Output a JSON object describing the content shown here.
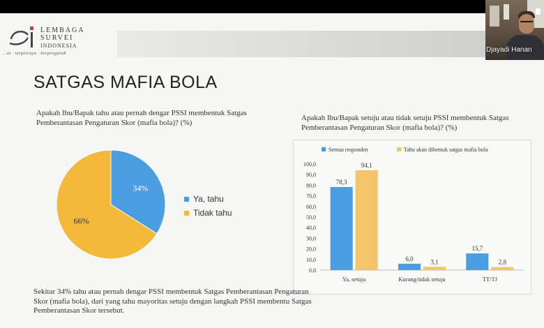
{
  "logo": {
    "line1": "LEMBAGA",
    "line2": "SURVEI",
    "line3": "INDONESIA",
    "tagline": "...at · terpercaya · berpengaruh"
  },
  "video": {
    "participant_name": "Djayadi Hanan"
  },
  "slide": {
    "title": "SATGAS MAFIA BOLA",
    "question_left": "Apakah Ibu/Bapak tahu atau pernah dengar PSSI membentuk Satgas Pemberantasan Pengaturan Skor (mafia bola)? (%)",
    "question_right": "Apakah Ibu/Bapak setuju atau tidak setuju PSSI membentuk Satgas Pemberantasan Pengaturan Skor (mafia bola)? (%)",
    "summary": "Sekitar 34% tahu atau pernah dengar PSSI membentuk Satgas Pemberantasan Pengaturan Skor (mafia bola), dari yang tahu mayoritas setuju dengan langkah PSSI membentu Satgas Pemberantasan Skor tersebut."
  },
  "chart_data": [
    {
      "type": "pie",
      "slices": [
        {
          "label": "Ya, tahu",
          "value": 34,
          "display": "34%",
          "color": "#4a9de0"
        },
        {
          "label": "Tidak tahu",
          "value": 66,
          "display": "66%",
          "color": "#f4b93a"
        }
      ],
      "legend_position": "right"
    },
    {
      "type": "bar",
      "categories": [
        "Ya, setuju",
        "Kurang/tidak setuju",
        "TT/TJ"
      ],
      "series": [
        {
          "name": "Semua responden",
          "values": [
            78.3,
            6.0,
            15.7
          ],
          "labels": [
            "78,3",
            "6,0",
            "15,7"
          ],
          "color": "#4a9de0"
        },
        {
          "name": "Tahu akan dibentuk satgas mafia bola",
          "values": [
            94.1,
            3.1,
            2.8
          ],
          "labels": [
            "94,1",
            "3,1",
            "2,8"
          ],
          "color": "#f4c46a"
        }
      ],
      "ylim": [
        0,
        100
      ],
      "yticks": [
        "0,0",
        "10,0",
        "20,0",
        "30,0",
        "40,0",
        "50,0",
        "60,0",
        "70,0",
        "80,0",
        "90,0",
        "100,0"
      ],
      "legend_position": "top"
    }
  ]
}
